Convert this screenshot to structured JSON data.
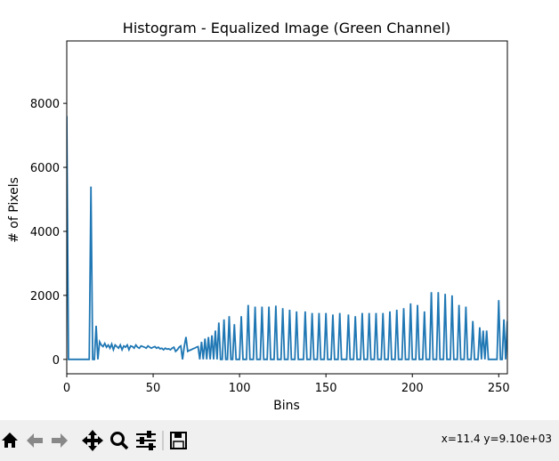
{
  "chart_data": {
    "type": "line",
    "title": "Histogram - Equalized Image (Green Channel)",
    "xlabel": "Bins",
    "ylabel": "# of Pixels",
    "color": "#1f77b4",
    "grid": false,
    "x": [
      0,
      1,
      2,
      3,
      4,
      5,
      6,
      7,
      8,
      9,
      10,
      11,
      12,
      13,
      14,
      15,
      16,
      17,
      18,
      19,
      20,
      21,
      22,
      23,
      24,
      25,
      26,
      27,
      28,
      29,
      30,
      31,
      32,
      33,
      34,
      35,
      36,
      37,
      38,
      39,
      40,
      41,
      42,
      43,
      44,
      45,
      46,
      47,
      48,
      49,
      50,
      51,
      52,
      53,
      54,
      55,
      56,
      57,
      58,
      59,
      60,
      61,
      62,
      63,
      64,
      65,
      66,
      67,
      68,
      69,
      70,
      71,
      72,
      73,
      74,
      75,
      76,
      77,
      78,
      79,
      80,
      81,
      82,
      83,
      84,
      85,
      86,
      87,
      88,
      89,
      90,
      91,
      92,
      93,
      94,
      95,
      96,
      97,
      98,
      99,
      100,
      101,
      102,
      103,
      104,
      105,
      106,
      107,
      108,
      109,
      110,
      111,
      112,
      113,
      114,
      115,
      116,
      117,
      118,
      119,
      120,
      121,
      122,
      123,
      124,
      125,
      126,
      127,
      128,
      129,
      130,
      131,
      132,
      133,
      134,
      135,
      136,
      137,
      138,
      139,
      140,
      141,
      142,
      143,
      144,
      145,
      146,
      147,
      148,
      149,
      150,
      151,
      152,
      153,
      154,
      155,
      156,
      157,
      158,
      159,
      160,
      161,
      162,
      163,
      164,
      165,
      166,
      167,
      168,
      169,
      170,
      171,
      172,
      173,
      174,
      175,
      176,
      177,
      178,
      179,
      180,
      181,
      182,
      183,
      184,
      185,
      186,
      187,
      188,
      189,
      190,
      191,
      192,
      193,
      194,
      195,
      196,
      197,
      198,
      199,
      200,
      201,
      202,
      203,
      204,
      205,
      206,
      207,
      208,
      209,
      210,
      211,
      212,
      213,
      214,
      215,
      216,
      217,
      218,
      219,
      220,
      221,
      222,
      223,
      224,
      225,
      226,
      227,
      228,
      229,
      230,
      231,
      232,
      233,
      234,
      235,
      236,
      237,
      238,
      239,
      240,
      241,
      242,
      243,
      244,
      245,
      246,
      247,
      248,
      249,
      250,
      251,
      252,
      253,
      254,
      255
    ],
    "values": [
      7600,
      0,
      0,
      0,
      0,
      0,
      0,
      0,
      0,
      0,
      0,
      0,
      0,
      0,
      5400,
      0,
      0,
      1050,
      0,
      550,
      450,
      400,
      500,
      380,
      450,
      350,
      480,
      300,
      450,
      400,
      350,
      450,
      300,
      420,
      380,
      450,
      300,
      420,
      400,
      350,
      450,
      380,
      350,
      420,
      400,
      380,
      350,
      420,
      380,
      350,
      380,
      400,
      350,
      380,
      330,
      350,
      300,
      350,
      320,
      330,
      300,
      350,
      380,
      250,
      300,
      380,
      420,
      0,
      400,
      700,
      250,
      280,
      300,
      330,
      350,
      380,
      400,
      0,
      550,
      0,
      650,
      0,
      700,
      0,
      750,
      0,
      900,
      0,
      1150,
      0,
      0,
      1250,
      0,
      0,
      1350,
      0,
      0,
      1100,
      0,
      0,
      0,
      1350,
      0,
      0,
      0,
      1700,
      0,
      0,
      0,
      1650,
      0,
      0,
      0,
      1650,
      0,
      0,
      0,
      1650,
      0,
      0,
      0,
      1680,
      0,
      0,
      0,
      1600,
      0,
      0,
      0,
      1550,
      0,
      0,
      0,
      1500,
      0,
      0,
      0,
      0,
      1500,
      0,
      0,
      0,
      1450,
      0,
      0,
      0,
      1450,
      0,
      0,
      0,
      1450,
      0,
      0,
      0,
      1400,
      0,
      0,
      0,
      1450,
      0,
      0,
      0,
      0,
      1400,
      0,
      0,
      0,
      1350,
      0,
      0,
      0,
      1450,
      0,
      0,
      0,
      1450,
      0,
      0,
      0,
      1450,
      0,
      0,
      0,
      1450,
      0,
      0,
      0,
      1500,
      0,
      0,
      0,
      1550,
      0,
      0,
      0,
      1600,
      0,
      0,
      0,
      1750,
      0,
      0,
      0,
      1700,
      0,
      0,
      0,
      1500,
      0,
      0,
      0,
      2100,
      0,
      0,
      0,
      2100,
      0,
      0,
      0,
      2050,
      0,
      0,
      0,
      2000,
      0,
      0,
      0,
      1700,
      0,
      0,
      0,
      1650,
      0,
      0,
      0,
      1200,
      0,
      0,
      0,
      1000,
      0,
      900,
      0,
      900,
      0,
      0,
      0,
      0,
      0,
      0,
      1850,
      0,
      0,
      1250,
      0,
      1200
    ],
    "xlim": [
      0,
      255
    ],
    "ylim": [
      -450,
      9950
    ],
    "xticks": [
      0,
      50,
      100,
      150,
      200,
      250
    ],
    "yticks": [
      0,
      2000,
      4000,
      6000,
      8000
    ]
  },
  "toolbar": {
    "status": "x=11.4 y=9.10e+03"
  }
}
